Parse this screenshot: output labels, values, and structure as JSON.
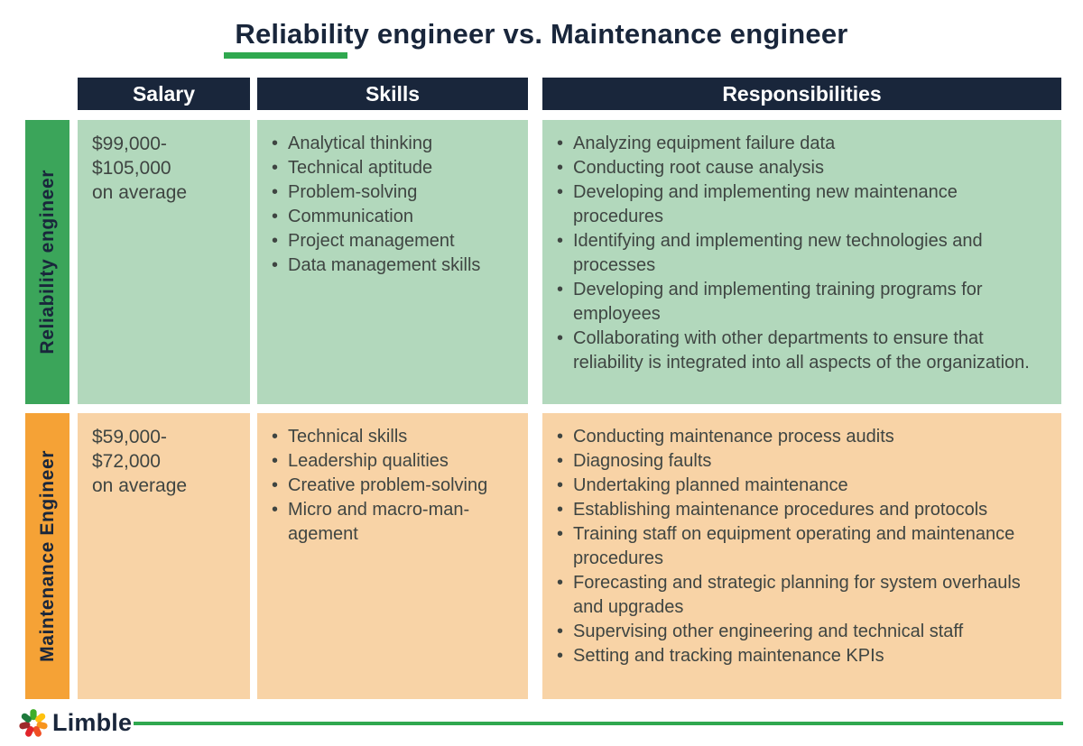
{
  "title": "Reliability engineer vs. Maintenance engineer",
  "colors": {
    "navy": "#19263B",
    "accent_green": "#2FA84F",
    "reliability_bar": "#3BA55A",
    "reliability_cell": "#B2D8BC",
    "maintenance_bar": "#F5A236",
    "maintenance_cell": "#F8D3A6",
    "body_text": "#3F4542",
    "header_text": "#FFFFFF"
  },
  "chart_data": {
    "type": "table",
    "columns": [
      "Salary",
      "Skills",
      "Responsibilities"
    ],
    "rows": [
      {
        "label": "Reliability engineer",
        "salary": "$99,000-\n$105,000\non average",
        "skills": [
          "Analytical thinking",
          "Technical aptitude",
          "Problem-solving",
          "Communication",
          "Project management",
          "Data management skills"
        ],
        "responsibilities": [
          "Analyzing equipment failure data",
          "Conducting root cause analysis",
          "Developing and implementing new maintenance procedures",
          "Identifying and implementing new technologies and processes",
          "Developing and implementing training programs for employees",
          "Collaborating with other departments to ensure that reliability is integrated into all aspects of the organization."
        ]
      },
      {
        "label": "Maintenance Engineer",
        "salary": "$59,000-\n$72,000\non average",
        "skills": [
          "Technical skills",
          "Leadership qualities",
          "Creative problem-solving",
          "Micro and macro-man-\nagement"
        ],
        "responsibilities": [
          "Conducting maintenance process audits",
          "Diagnosing faults",
          "Undertaking planned maintenance",
          "Establishing maintenance procedures and protocols",
          "Training staff on equipment operating and maintenance procedures",
          "Forecasting and strategic planning for system overhauls and upgrades",
          "Supervising other engineering and technical staff",
          "Setting and tracking maintenance KPIs"
        ]
      }
    ]
  },
  "footer": {
    "brand": "Limble",
    "logo_icon": "multicolor-gear-icon"
  }
}
